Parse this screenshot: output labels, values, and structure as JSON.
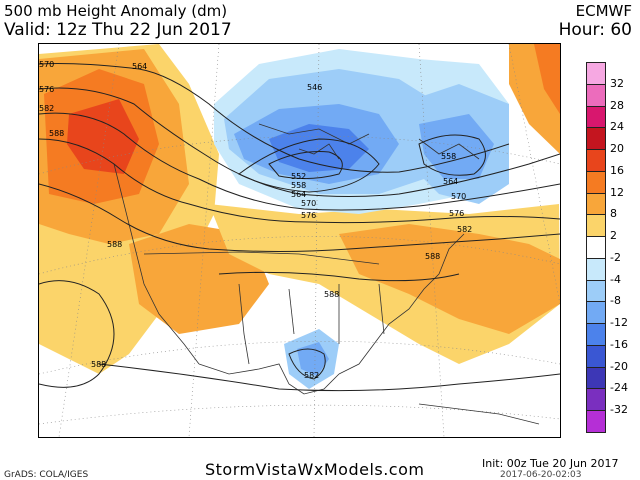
{
  "header": {
    "title": "500 mb Height Anomaly (dm)",
    "valid": "Valid: 12z Thu 22 Jun 2017",
    "model": "ECMWF",
    "hour": "Hour: 60"
  },
  "footer": {
    "site": "StormVistaWxModels.com",
    "init": "Init: 00z Tue 20 Jun 2017",
    "stamp": "2017-06-20-02:03",
    "grads": "GrADS: COLA/IGES"
  },
  "colorbar": {
    "ticks": [
      "32",
      "28",
      "24",
      "20",
      "16",
      "12",
      "8",
      "2",
      "-2",
      "-4",
      "-8",
      "-12",
      "-16",
      "-20",
      "-24",
      "-32"
    ],
    "colors": [
      "#f6a8e2",
      "#ec6cbc",
      "#d8176e",
      "#c4151f",
      "#e8451c",
      "#f57b22",
      "#f8a63a",
      "#fbd46a",
      "#ffffff",
      "#c8e9fb",
      "#9dcdf8",
      "#72aaf4",
      "#4c82eb",
      "#3a57d3",
      "#3d37b6",
      "#7a2fbf",
      "#b52fd6"
    ]
  },
  "map": {
    "contour_labels": [
      "570",
      "564",
      "576",
      "582",
      "588",
      "546",
      "552",
      "558",
      "564",
      "570",
      "576",
      "558",
      "564",
      "570",
      "576",
      "582",
      "588",
      "588",
      "588",
      "588",
      "582"
    ]
  }
}
